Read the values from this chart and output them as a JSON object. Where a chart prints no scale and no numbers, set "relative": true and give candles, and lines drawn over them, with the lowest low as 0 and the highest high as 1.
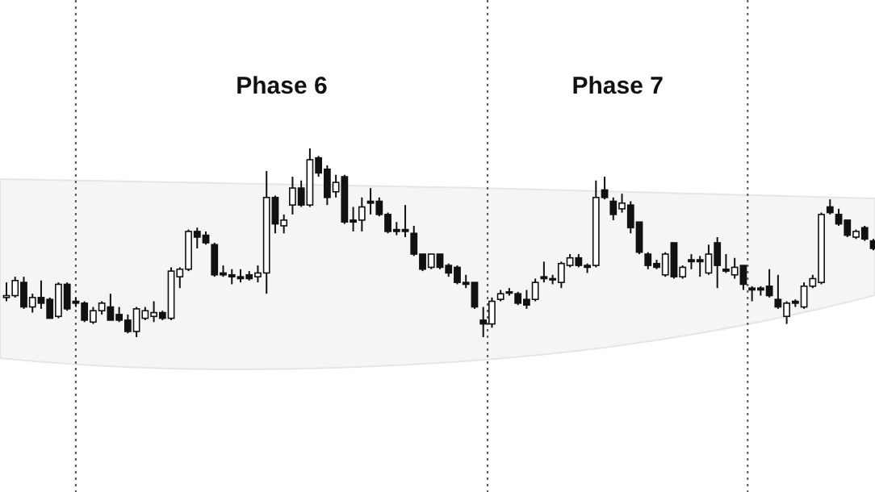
{
  "chart_data": {
    "type": "candlestick",
    "relative": true,
    "color": "#111111",
    "annotations": [
      "Phase 6",
      "Phase 7"
    ],
    "categories": [
      null,
      null,
      null,
      null,
      null,
      null,
      null,
      null,
      null,
      null,
      null,
      null,
      null,
      null,
      null,
      null,
      null,
      null,
      null,
      null,
      null,
      null,
      null,
      null,
      null,
      null,
      null,
      null,
      null,
      null,
      null,
      null,
      null,
      null,
      null,
      null,
      null,
      null,
      null,
      null,
      null,
      null,
      null,
      null,
      null,
      null,
      null,
      null,
      null,
      null,
      null,
      null,
      null,
      null,
      null,
      null,
      null,
      null,
      null,
      null,
      null,
      null,
      null,
      null,
      null,
      null,
      null,
      null,
      null,
      null,
      null,
      null,
      null,
      null,
      null,
      null,
      null,
      null,
      null,
      null,
      null,
      null,
      null,
      null,
      null,
      null,
      null,
      null,
      null,
      null,
      null,
      null,
      null,
      null,
      null,
      null,
      null,
      null,
      null,
      null,
      null
    ],
    "ohlc": [
      [
        0.21,
        0.29,
        0.19,
        0.22
      ],
      [
        0.22,
        0.32,
        0.21,
        0.3
      ],
      [
        0.29,
        0.32,
        0.15,
        0.16
      ],
      [
        0.16,
        0.23,
        0.13,
        0.21
      ],
      [
        0.21,
        0.3,
        0.15,
        0.18
      ],
      [
        0.2,
        0.21,
        0.1,
        0.1
      ],
      [
        0.11,
        0.29,
        0.1,
        0.28
      ],
      [
        0.28,
        0.29,
        0.14,
        0.15
      ],
      [
        0.19,
        0.21,
        0.16,
        0.18
      ],
      [
        0.18,
        0.19,
        0.08,
        0.09
      ],
      [
        0.08,
        0.16,
        0.07,
        0.14
      ],
      [
        0.14,
        0.19,
        0.12,
        0.18
      ],
      [
        0.16,
        0.23,
        0.09,
        0.09
      ],
      [
        0.12,
        0.16,
        0.08,
        0.09
      ],
      [
        0.09,
        0.12,
        0.02,
        0.03
      ],
      [
        0.03,
        0.16,
        0,
        0.15
      ],
      [
        0.1,
        0.16,
        0.09,
        0.14
      ],
      [
        0.11,
        0.19,
        0.08,
        0.13
      ],
      [
        0.13,
        0.14,
        0.09,
        0.1
      ],
      [
        0.1,
        0.37,
        0.09,
        0.35
      ],
      [
        0.32,
        0.37,
        0.26,
        0.36
      ],
      [
        0.36,
        0.57,
        0.35,
        0.56
      ],
      [
        0.56,
        0.58,
        0.47,
        0.53
      ],
      [
        0.54,
        0.56,
        0.49,
        0.5
      ],
      [
        0.49,
        0.5,
        0.32,
        0.33
      ],
      [
        0.34,
        0.38,
        0.32,
        0.33
      ],
      [
        0.33,
        0.36,
        0.28,
        0.32
      ],
      [
        0.32,
        0.36,
        0.29,
        0.31
      ],
      [
        0.33,
        0.35,
        0.3,
        0.31
      ],
      [
        0.32,
        0.38,
        0.29,
        0.34
      ],
      [
        0.34,
        0.88,
        0.23,
        0.74
      ],
      [
        0.74,
        0.75,
        0.55,
        0.6
      ],
      [
        0.59,
        0.65,
        0.55,
        0.62
      ],
      [
        0.7,
        0.85,
        0.65,
        0.79
      ],
      [
        0.79,
        0.83,
        0.69,
        0.7
      ],
      [
        0.7,
        1,
        0.69,
        0.94
      ],
      [
        0.95,
        0.96,
        0.85,
        0.87
      ],
      [
        0.89,
        0.91,
        0.7,
        0.74
      ],
      [
        0.77,
        0.86,
        0.74,
        0.82
      ],
      [
        0.85,
        0.86,
        0.6,
        0.61
      ],
      [
        0.62,
        0.69,
        0.56,
        0.61
      ],
      [
        0.62,
        0.74,
        0.56,
        0.69
      ],
      [
        0.72,
        0.79,
        0.65,
        0.71
      ],
      [
        0.72,
        0.74,
        0.64,
        0.65
      ],
      [
        0.65,
        0.66,
        0.55,
        0.56
      ],
      [
        0.57,
        0.61,
        0.54,
        0.56
      ],
      [
        0.57,
        0.7,
        0.53,
        0.56
      ],
      [
        0.55,
        0.59,
        0.43,
        0.44
      ],
      [
        0.44,
        0.44,
        0.35,
        0.36
      ],
      [
        0.37,
        0.44,
        0.36,
        0.44
      ],
      [
        0.44,
        0.44,
        0.36,
        0.37
      ],
      [
        0.38,
        0.39,
        0.32,
        0.34
      ],
      [
        0.37,
        0.38,
        0.28,
        0.29
      ],
      [
        0.29,
        0.33,
        0.26,
        0.28
      ],
      [
        0.29,
        0.29,
        0.15,
        0.16
      ],
      [
        0.09,
        0.16,
        0,
        0.07
      ],
      [
        0.07,
        0.21,
        0.05,
        0.19
      ],
      [
        0.2,
        0.25,
        0.19,
        0.23
      ],
      [
        0.24,
        0.26,
        0.22,
        0.24
      ],
      [
        0.23,
        0.24,
        0.17,
        0.18
      ],
      [
        0.2,
        0.25,
        0.15,
        0.17
      ],
      [
        0.2,
        0.31,
        0.19,
        0.29
      ],
      [
        0.32,
        0.4,
        0.29,
        0.31
      ],
      [
        0.31,
        0.33,
        0.28,
        0.31
      ],
      [
        0.29,
        0.4,
        0.26,
        0.39
      ],
      [
        0.38,
        0.44,
        0.37,
        0.42
      ],
      [
        0.42,
        0.44,
        0.37,
        0.38
      ],
      [
        0.38,
        0.39,
        0.34,
        0.37
      ],
      [
        0.38,
        0.83,
        0.37,
        0.74
      ],
      [
        0.78,
        0.85,
        0.73,
        0.74
      ],
      [
        0.72,
        0.74,
        0.62,
        0.65
      ],
      [
        0.68,
        0.76,
        0.66,
        0.71
      ],
      [
        0.7,
        0.72,
        0.55,
        0.58
      ],
      [
        0.61,
        0.61,
        0.44,
        0.45
      ],
      [
        0.44,
        0.45,
        0.36,
        0.38
      ],
      [
        0.39,
        0.41,
        0.36,
        0.37
      ],
      [
        0.33,
        0.45,
        0.32,
        0.44
      ],
      [
        0.5,
        0.5,
        0.31,
        0.32
      ],
      [
        0.32,
        0.38,
        0.31,
        0.37
      ],
      [
        0.41,
        0.44,
        0.36,
        0.4
      ],
      [
        0.41,
        0.43,
        0.32,
        0.4
      ],
      [
        0.34,
        0.49,
        0.33,
        0.44
      ],
      [
        0.5,
        0.53,
        0.26,
        0.38
      ],
      [
        0.36,
        0.44,
        0.34,
        0.35
      ],
      [
        0.33,
        0.42,
        0.31,
        0.37
      ],
      [
        0.38,
        0.38,
        0.25,
        0.28
      ],
      [
        0.26,
        0.27,
        0.19,
        0.25
      ],
      [
        0.26,
        0.27,
        0.22,
        0.25
      ],
      [
        0.27,
        0.36,
        0.21,
        0.22
      ],
      [
        0.2,
        0.33,
        0.15,
        0.16
      ],
      [
        0.11,
        0.19,
        0.07,
        0.18
      ],
      [
        0.19,
        0.2,
        0.16,
        0.18
      ],
      [
        0.16,
        0.29,
        0.15,
        0.27
      ],
      [
        0.27,
        0.33,
        0.26,
        0.31
      ],
      [
        0.29,
        0.66,
        0.28,
        0.65
      ],
      [
        0.69,
        0.73,
        0.65,
        0.66
      ],
      [
        0.65,
        0.68,
        0.59,
        0.6
      ],
      [
        0.62,
        0.62,
        0.53,
        0.54
      ],
      [
        0.53,
        0.57,
        0.52,
        0.56
      ],
      [
        0.58,
        0.59,
        0.51,
        0.52
      ],
      [
        0.51,
        0.52,
        0.46,
        0.47
      ]
    ]
  }
}
